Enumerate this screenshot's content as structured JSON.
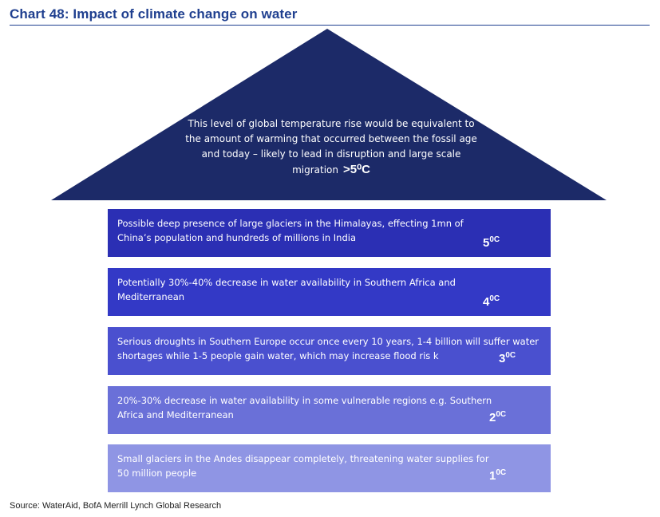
{
  "header": {
    "title": "Chart 48: Impact of climate change on water"
  },
  "roof": {
    "text": "This level of global temperature rise would be equivalent to the amount of warming that occurred between the fossil age and today – likely to lead in disruption and large scale migration",
    "temp": ">5⁰C",
    "color": "#1c2a68"
  },
  "bands": [
    {
      "text": "Possible deep presence of large glaciers in the Himalayas, effecting 1mn of China’s population and hundreds of millions in India",
      "temp_value": "5",
      "temp_unit": "0C",
      "color": "#2b2fb4"
    },
    {
      "text": "Potentially 30%-40% decrease in water availability in Southern Africa and Mediterranean",
      "temp_value": "4",
      "temp_unit": "0C",
      "color": "#3339c6"
    },
    {
      "text": "Serious droughts in Southern Europe occur once every 10 years, 1-4 billion will suffer water shortages while 1-5 people gain water, which may increase flood ris k",
      "temp_value": "3",
      "temp_unit": "0C",
      "color": "#4a50cf"
    },
    {
      "text": "20%-30% decrease in water availability in some vulnerable regions e.g. Southern Africa and Mediterranean",
      "temp_value": "2",
      "temp_unit": "0C",
      "color": "#6a70d8"
    },
    {
      "text": "Small glaciers in the Andes disappear completely, threatening water supplies for 50 million people",
      "temp_value": "1",
      "temp_unit": "0C",
      "color": "#8f95e4"
    }
  ],
  "footer": {
    "source": "Source:  WaterAid, BofA Merrill Lynch Global Research"
  }
}
